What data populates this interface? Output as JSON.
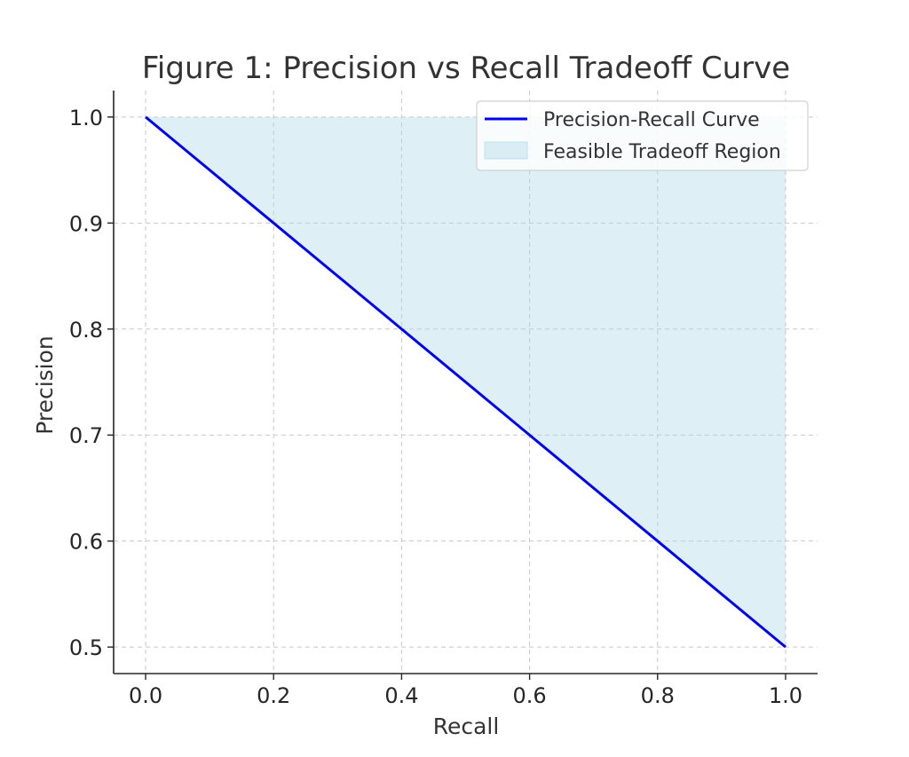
{
  "colors": {
    "curve": "#0000ee",
    "region_fill": "#add8e6",
    "grid": "#c8c8c8",
    "axis": "#262626",
    "text": "#333333"
  },
  "chart_data": {
    "type": "line",
    "title": "Figure 1: Precision vs Recall Tradeoff Curve",
    "xlabel": "Recall",
    "ylabel": "Precision",
    "xlim": [
      -0.05,
      1.05
    ],
    "ylim": [
      0.475,
      1.025
    ],
    "grid": true,
    "legend_position": "top-right",
    "x_ticks": [
      0.0,
      0.2,
      0.4,
      0.6,
      0.8,
      1.0
    ],
    "x_tick_labels": [
      "0.0",
      "0.2",
      "0.4",
      "0.6",
      "0.8",
      "1.0"
    ],
    "y_ticks": [
      0.5,
      0.6,
      0.7,
      0.8,
      0.9,
      1.0
    ],
    "y_tick_labels": [
      "0.5",
      "0.6",
      "0.7",
      "0.8",
      "0.9",
      "1.0"
    ],
    "series": [
      {
        "name": "Precision-Recall Curve",
        "kind": "line",
        "color": "#0000ee",
        "x": [
          0.0,
          0.2,
          0.4,
          0.6,
          0.8,
          1.0
        ],
        "y": [
          1.0,
          0.9,
          0.8,
          0.7,
          0.6,
          0.5
        ]
      },
      {
        "name": "Feasible Tradeoff Region",
        "kind": "area",
        "color": "#add8e6",
        "opacity": 0.4,
        "x": [
          0.0,
          1.0
        ],
        "y_lower": [
          1.0,
          0.5
        ],
        "y_upper": [
          1.0,
          1.0
        ]
      }
    ]
  }
}
